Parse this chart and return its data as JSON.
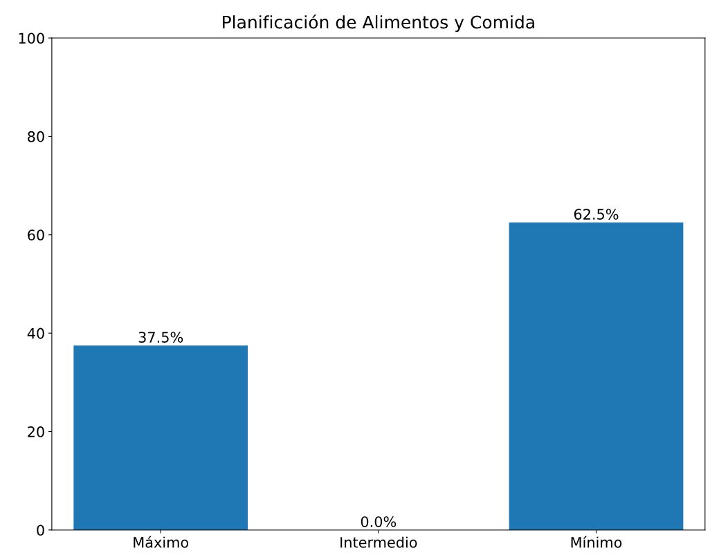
{
  "chart_data": {
    "type": "bar",
    "title": "Planificación de Alimentos y Comida",
    "categories": [
      "Máximo",
      "Intermedio",
      "Mínimo"
    ],
    "values": [
      37.5,
      0.0,
      62.5
    ],
    "value_labels": [
      "37.5%",
      "0.0%",
      "62.5%"
    ],
    "color": "#1f77b4",
    "ylim": [
      0,
      100
    ],
    "yticks": [
      0,
      20,
      40,
      60,
      80,
      100
    ],
    "grid": false
  }
}
